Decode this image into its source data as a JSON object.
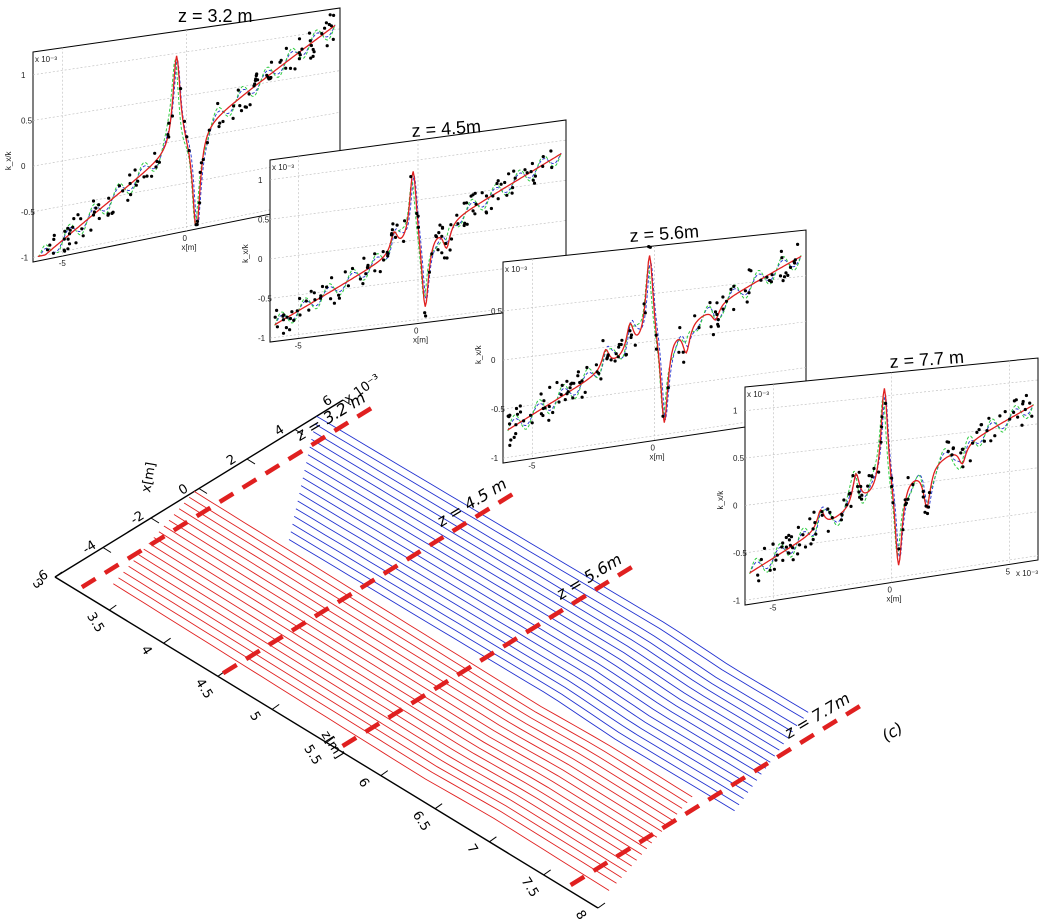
{
  "chart_data": {
    "type": "line",
    "panel_label": "(c)",
    "main_plot": {
      "x_axis_label": "x[m]",
      "x_axis_exponent": "x 10⁻³",
      "x_ticks": [
        "-6",
        "-4",
        "-2",
        "0",
        "2",
        "4",
        "6"
      ],
      "z_axis_label": "z[m]",
      "z_ticks": [
        "3",
        "3.5",
        "4",
        "4.5",
        "5",
        "5.5",
        "6",
        "6.5",
        "7",
        "7.5",
        "8"
      ],
      "xlim": [
        -6,
        6
      ],
      "zlim": [
        3,
        8
      ],
      "section_markers": [
        {
          "label": "z = 3.2 m",
          "z": 3.2,
          "color": "#e02020",
          "style": "dashed"
        },
        {
          "label": "z = 4.5 m",
          "z": 4.5,
          "color": "#e02020",
          "style": "dashed"
        },
        {
          "label": "z = 5.6m",
          "z": 5.6,
          "color": "#e02020",
          "style": "dashed"
        },
        {
          "label": "z = 7.7m",
          "z": 7.7,
          "color": "#e02020",
          "style": "dashed"
        }
      ],
      "series": [
        {
          "color": "#2030d0",
          "x_at_z3": [
            4.9,
            4.6,
            4.3,
            4.0,
            3.7,
            3.4,
            3.1,
            2.8,
            2.5,
            2.2,
            1.9,
            1.6,
            1.3,
            1.0,
            0.7,
            0.4,
            0.1
          ],
          "x_at_z8": [
            5.2,
            4.9,
            4.5,
            4.2,
            3.9,
            3.6,
            3.3,
            3.0,
            2.7,
            2.4,
            2.1,
            1.8,
            1.5,
            1.2,
            0.9,
            0.6,
            0.3
          ]
        },
        {
          "color": "#e02020",
          "x_at_z3": [
            -0.2,
            -0.5,
            -0.8,
            -1.1,
            -1.4,
            -1.7,
            -2.0,
            -2.3,
            -2.6,
            -2.9,
            -3.2,
            -3.5,
            -3.8,
            -4.1,
            -4.4,
            -4.7,
            -5.0
          ],
          "x_at_z8": [
            -0.4,
            -0.7,
            -1.0,
            -1.3,
            -1.6,
            -1.9,
            -2.2,
            -2.5,
            -2.8,
            -3.1,
            -3.4,
            -3.7,
            -4.0,
            -4.3,
            -4.6,
            -4.9,
            -5.3
          ]
        }
      ]
    },
    "insets": [
      {
        "title": "z = 3.2 m",
        "xlabel": "x[m]",
        "ylabel": "k_x/k",
        "yexp": "x 10⁻³",
        "ylim": [
          -1,
          1.25
        ],
        "y_ticks": [
          "-1",
          "-0.5",
          "0",
          "0.5",
          "1"
        ],
        "x_ticks": [
          "-5",
          "0"
        ],
        "curve_type": "single",
        "slope": 0.175,
        "peaks": [
          {
            "x": -0.4,
            "a": 1.1
          },
          {
            "x": 0.4,
            "a": -1.2
          }
        ]
      },
      {
        "title": "z = 4.5m",
        "xlabel": "x[m]",
        "ylabel": "k_x/k",
        "yexp": "x 10⁻³",
        "ylim": [
          -1,
          1.25
        ],
        "y_ticks": [
          "-1",
          "-0.5",
          "0",
          "0.5",
          "1"
        ],
        "x_ticks": [
          "-5",
          "0"
        ],
        "curve_type": "double",
        "slope": 0.14,
        "peaks": [
          {
            "x": -1.0,
            "a": 0.25
          },
          {
            "x": -0.2,
            "a": 1.0
          },
          {
            "x": 0.3,
            "a": -1.0
          },
          {
            "x": 1.2,
            "a": -0.3
          }
        ]
      },
      {
        "title": "z = 5.6m",
        "xlabel": "x[m]",
        "ylabel": "k_x/k",
        "yexp": "x 10⁻³",
        "ylim": [
          -1,
          1.0
        ],
        "y_ticks": [
          "-1",
          "-0.5",
          "0",
          "0.5"
        ],
        "x_ticks": [
          "-5",
          "0"
        ],
        "curve_type": "multi",
        "slope": 0.12,
        "peaks": [
          {
            "x": -2.0,
            "a": 0.2
          },
          {
            "x": -1.0,
            "a": 0.3
          },
          {
            "x": -0.2,
            "a": 1.0
          },
          {
            "x": 0.4,
            "a": -1.0
          },
          {
            "x": 1.3,
            "a": -0.3
          },
          {
            "x": 2.5,
            "a": -0.15
          }
        ]
      },
      {
        "title": "z = 7.7 m",
        "xlabel": "x[m]",
        "ylabel": "k_x/k",
        "yexp": "x 10⁻³",
        "xexp": "x 10⁻³",
        "ylim": [
          -1,
          1.25
        ],
        "y_ticks": [
          "-1",
          "-0.5",
          "0",
          "0.5",
          "1"
        ],
        "x_ticks": [
          "-5",
          "0",
          "5"
        ],
        "curve_type": "multi",
        "slope": 0.12,
        "peaks": [
          {
            "x": -3.0,
            "a": 0.2
          },
          {
            "x": -1.5,
            "a": 0.35
          },
          {
            "x": -0.3,
            "a": 1.2
          },
          {
            "x": 0.3,
            "a": -1.0
          },
          {
            "x": 1.5,
            "a": -0.45
          },
          {
            "x": 3.0,
            "a": -0.2
          }
        ]
      }
    ],
    "legend_styles": {
      "fit": "#e02020",
      "sim_a": "#2ecc40",
      "sim_b": "#2030d0",
      "measured": "#000000"
    }
  }
}
